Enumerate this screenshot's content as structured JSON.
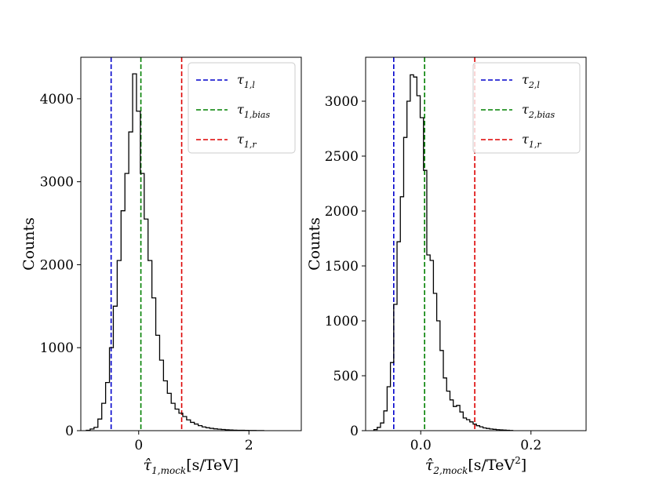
{
  "chart_data": [
    {
      "type": "histogram",
      "ylabel": "Counts",
      "xlabel": "τ̂1,mock[s/TeV]",
      "xlim": [
        -1.05,
        2.95
      ],
      "ylim": [
        0,
        4500
      ],
      "xticks": [
        0,
        2
      ],
      "yticks": [
        0,
        1000,
        2000,
        3000,
        4000
      ],
      "bins": {
        "start": -0.95,
        "width": 0.07,
        "counts": [
          5,
          20,
          40,
          140,
          330,
          580,
          1000,
          1500,
          2050,
          2650,
          3100,
          3600,
          4300,
          3850,
          3100,
          2550,
          2050,
          1600,
          1150,
          850,
          600,
          450,
          330,
          260,
          210,
          170,
          130,
          100,
          80,
          60,
          45,
          35,
          28,
          22,
          18,
          14,
          10,
          8,
          6,
          5,
          4,
          3,
          2,
          2,
          1,
          1
        ]
      },
      "vlines": [
        {
          "name": "τ1,l",
          "main": "τ",
          "sub": "1,l",
          "x": -0.5,
          "color": "#0000cc"
        },
        {
          "name": "τ1,bias",
          "main": "τ",
          "sub": "1,bias",
          "x": 0.04,
          "color": "#008000"
        },
        {
          "name": "τ1,r",
          "main": "τ",
          "sub": "1,r",
          "x": 0.78,
          "color": "#dd0000"
        }
      ],
      "legend_position": "top-right"
    },
    {
      "type": "histogram",
      "ylabel": "Counts",
      "xlabel": "τ̂2,mock[s/TeV²]",
      "xlim": [
        -0.1,
        0.3
      ],
      "ylim": [
        0,
        3400
      ],
      "xticks": [
        0.0,
        0.2
      ],
      "yticks": [
        0,
        500,
        1000,
        1500,
        2000,
        2500,
        3000
      ],
      "bins": {
        "start": -0.085,
        "width": 0.006,
        "counts": [
          10,
          30,
          70,
          180,
          400,
          620,
          1150,
          1720,
          2130,
          2670,
          3000,
          3240,
          3220,
          3050,
          2850,
          2370,
          1600,
          1550,
          1250,
          1000,
          730,
          480,
          360,
          280,
          220,
          230,
          170,
          115,
          100,
          80,
          60,
          45,
          35,
          25,
          20,
          15,
          12,
          9,
          7,
          5,
          3,
          2
        ]
      },
      "vlines": [
        {
          "name": "τ2,l",
          "main": "τ",
          "sub": "2,l",
          "x": -0.049,
          "color": "#0000cc"
        },
        {
          "name": "τ2,bias",
          "main": "τ",
          "sub": "2,bias",
          "x": 0.007,
          "color": "#008000"
        },
        {
          "name": "τ1,r",
          "main": "τ",
          "sub": "1,r",
          "x": 0.098,
          "color": "#dd0000"
        }
      ],
      "legend_position": "top-right"
    }
  ]
}
